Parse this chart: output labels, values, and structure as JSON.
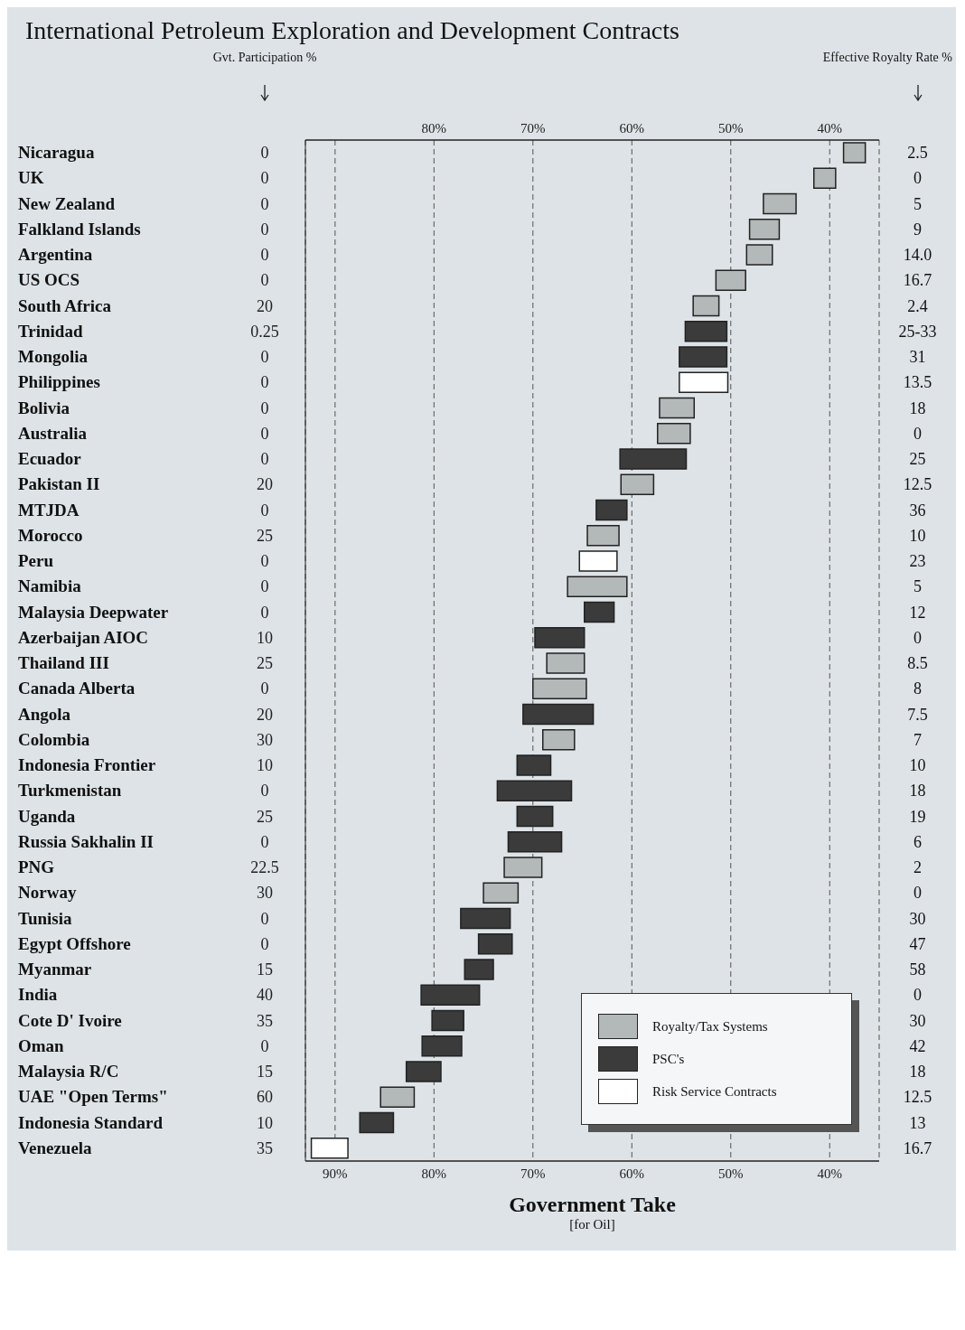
{
  "chart_data": {
    "type": "bar",
    "orientation": "horizontal",
    "title": "International Petroleum Exploration and Development Contracts",
    "xlabel": "Government Take",
    "ylabel": "Gvt. Participation %",
    "y2label": "Effective Royalty Rate %",
    "categories": [
      "Nicaragua",
      "UK",
      "New Zealand",
      "Falkland Islands",
      "Argentina",
      "US OCS",
      "South Africa",
      "Trinidad",
      "Mongolia",
      "Philippines",
      "Bolivia",
      "Australia",
      "Ecuador",
      "Pakistan II",
      "MTJDA",
      "Morocco",
      "Peru",
      "Namibia",
      "Malaysia Deepwater",
      "Azerbaijan AIOC",
      "Thailand III",
      "Canada Alberta",
      "Angola",
      "Colombia",
      "Indonesia Frontier",
      "Turkmenistan",
      "Uganda",
      "Russia Sakhalin II",
      "PNG",
      "Norway",
      "Tunisia",
      "Egypt Offshore",
      "Myanmar",
      "India",
      "Cote D' Ivoire",
      "Oman",
      "Malaysia R/C",
      "UAE \"Open Terms\"",
      "Indonesia Standard",
      "Venezuela"
    ],
    "series": [
      {
        "name": "Royalty/Tax Systems",
        "color": "#b3b8b9",
        "base": [
          36.4,
          39.4,
          43.4,
          45.1,
          45.8,
          48.5,
          51.2,
          null,
          null,
          null,
          53.7,
          54.1,
          null,
          57.8,
          null,
          61.3,
          null,
          60.5,
          null,
          null,
          64.8,
          64.6,
          null,
          65.8,
          null,
          null,
          null,
          null,
          69.1,
          71.5,
          null,
          null,
          null,
          null,
          null,
          null,
          null,
          82.0,
          null,
          null
        ],
        "values": [
          2.2,
          2.2,
          3.3,
          3.0,
          2.6,
          3.0,
          2.6,
          null,
          null,
          null,
          3.5,
          3.3,
          null,
          3.3,
          null,
          3.2,
          null,
          6.0,
          null,
          null,
          3.8,
          5.4,
          null,
          3.2,
          null,
          null,
          null,
          null,
          3.8,
          3.5,
          null,
          null,
          null,
          null,
          null,
          null,
          null,
          3.4,
          null,
          null
        ]
      },
      {
        "name": "PSC's",
        "color": "#3b3b3b",
        "base": [
          null,
          null,
          null,
          null,
          null,
          null,
          null,
          50.4,
          50.4,
          null,
          null,
          null,
          54.5,
          null,
          60.5,
          null,
          null,
          null,
          61.8,
          64.8,
          null,
          null,
          63.9,
          null,
          68.2,
          66.1,
          68.0,
          67.1,
          null,
          null,
          72.3,
          72.1,
          74.0,
          75.4,
          77.0,
          77.2,
          79.3,
          null,
          84.1,
          null
        ],
        "values": [
          null,
          null,
          null,
          null,
          null,
          null,
          null,
          4.2,
          4.8,
          null,
          null,
          null,
          6.7,
          null,
          3.1,
          null,
          null,
          null,
          3.0,
          5.0,
          null,
          null,
          7.1,
          null,
          3.4,
          7.5,
          3.6,
          5.4,
          null,
          null,
          5.0,
          3.4,
          2.9,
          5.9,
          3.2,
          4.0,
          3.5,
          null,
          3.4,
          null
        ]
      },
      {
        "name": "Risk Service Contracts",
        "color": "#ffffff",
        "base": [
          null,
          null,
          null,
          null,
          null,
          null,
          null,
          null,
          null,
          50.3,
          null,
          null,
          null,
          null,
          null,
          null,
          61.5,
          null,
          null,
          null,
          null,
          null,
          null,
          null,
          null,
          null,
          null,
          null,
          null,
          null,
          null,
          null,
          null,
          null,
          null,
          null,
          null,
          null,
          null,
          88.7
        ],
        "values": [
          null,
          null,
          null,
          null,
          null,
          null,
          null,
          null,
          null,
          4.9,
          null,
          null,
          null,
          null,
          null,
          null,
          3.8,
          null,
          null,
          null,
          null,
          null,
          null,
          null,
          null,
          null,
          null,
          null,
          null,
          null,
          null,
          null,
          null,
          null,
          null,
          null,
          null,
          null,
          null,
          3.7
        ]
      }
    ],
    "xlim": [
      93,
      35
    ],
    "xticks": [
      {
        "value": 90,
        "label": "90%"
      },
      {
        "value": 80,
        "label": "80%"
      },
      {
        "value": 70,
        "label": "70%"
      },
      {
        "value": 60,
        "label": "60%"
      },
      {
        "value": 50,
        "label": "50%"
      },
      {
        "value": 40,
        "label": "40%"
      }
    ],
    "x2lim": [
      93,
      35
    ],
    "x2ticks": [
      {
        "value": 80,
        "label": "80%"
      },
      {
        "value": 70,
        "label": "70%"
      },
      {
        "value": 60,
        "label": "60%"
      },
      {
        "value": 50,
        "label": "50%"
      },
      {
        "value": 40,
        "label": "40%"
      }
    ],
    "grid": "x",
    "legend": "bottom right",
    "annotations": [
      "0",
      "0",
      "0",
      "0",
      "0",
      "0",
      "20",
      "0.25",
      "0",
      "0",
      "0",
      "0",
      "0",
      "20",
      "0",
      "25",
      "0",
      "0",
      "0",
      "10",
      "25",
      "0",
      "20",
      "30",
      "10",
      "0",
      "25",
      "0",
      "22.5",
      "30",
      "0",
      "0",
      "15",
      "40",
      "35",
      "0",
      "15",
      "60",
      "10",
      "35",
      "2.5",
      "0",
      "5",
      "9",
      "14.0",
      "16.7",
      "2.4",
      "25-33",
      "31",
      "13.5",
      "18",
      "0",
      "25",
      "12.5",
      "36",
      "10",
      "23",
      "5",
      "12",
      "0",
      "8.5",
      "8",
      "7.5",
      "7",
      "10",
      "18",
      "19",
      "6",
      "2",
      "0",
      "30",
      "47",
      "58",
      "0",
      "30",
      "42",
      "18",
      "12.5",
      "13",
      "16.7",
      "[for Oil]"
    ]
  }
}
